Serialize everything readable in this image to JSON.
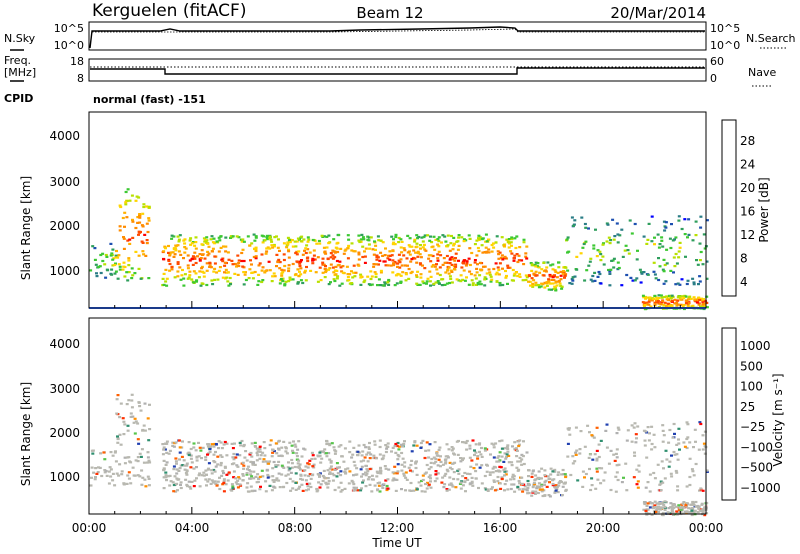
{
  "header": {
    "station": "Kerguelen (fitACF)",
    "beam": "Beam 12",
    "date": "20/Mar/2014"
  },
  "top_panels": {
    "nsky_label": "N.Sky",
    "nsky_ticks": [
      "10^5",
      "10^0"
    ],
    "nsearch_label": "N.Search",
    "nsearch_ticks": [
      "10^5",
      "10^0"
    ],
    "freq_label": "Freq.",
    "freq_unit": "[MHz]",
    "freq_ticks": [
      "18",
      "8"
    ],
    "nave_label": "Nave",
    "nave_ticks": [
      "60",
      "0"
    ],
    "cpid_label": "CPID",
    "cpid_value": "normal (fast) -151"
  },
  "chart_data": [
    {
      "type": "heatmap",
      "name": "power",
      "ylabel": "Slant Range [km]",
      "yticks": [
        "4000",
        "3000",
        "2000",
        "1000"
      ],
      "ylim": [
        300,
        4500
      ],
      "colorbar": {
        "label": "Power [dB]",
        "ticks": [
          "28",
          "24",
          "20",
          "16",
          "12",
          "8",
          "4"
        ],
        "colors": [
          "#ff0000",
          "#ff4a00",
          "#ff8c00",
          "#ffb000",
          "#ffd400",
          "#b8e000",
          "#3cc832",
          "#2f9e5c",
          "#2a7d86",
          "#1d4fb0",
          "#0000ff"
        ]
      },
      "regions": [
        {
          "t": [
            0.0,
            1.0
          ],
          "r": [
            900,
            1700
          ],
          "level": "weak"
        },
        {
          "t": [
            1.0,
            2.3
          ],
          "r": [
            900,
            2900
          ],
          "level": "strong"
        },
        {
          "t": [
            2.8,
            17.0
          ],
          "r": [
            800,
            1900
          ],
          "level": "strong"
        },
        {
          "t": [
            17.0,
            18.5
          ],
          "r": [
            700,
            1300
          ],
          "level": "strong"
        },
        {
          "t": [
            18.5,
            24.0
          ],
          "r": [
            800,
            2300
          ],
          "level": "weak"
        },
        {
          "t": [
            21.5,
            24.0
          ],
          "r": [
            300,
            600
          ],
          "level": "strong"
        }
      ]
    },
    {
      "type": "heatmap",
      "name": "velocity",
      "ylabel": "Slant Range [km]",
      "yticks": [
        "4000",
        "3000",
        "2000",
        "1000"
      ],
      "ylim": [
        300,
        4500
      ],
      "colorbar": {
        "label": "Velocity [m s⁻¹]",
        "ticks": [
          "1000",
          "500",
          "100",
          "25",
          "−25",
          "−100",
          "−500",
          "−1000"
        ],
        "colors": [
          "#2040b0",
          "#2f8f6f",
          "#57c44a",
          "#b0b0b0",
          "#b0b0b0",
          "#ff9000",
          "#ff6000",
          "#ff3000",
          "#ff0000"
        ]
      },
      "xlabel": "Time UT",
      "xticks": [
        "00:00",
        "04:00",
        "08:00",
        "12:00",
        "16:00",
        "20:00",
        "00:00"
      ],
      "xlim": [
        0,
        24
      ]
    }
  ]
}
